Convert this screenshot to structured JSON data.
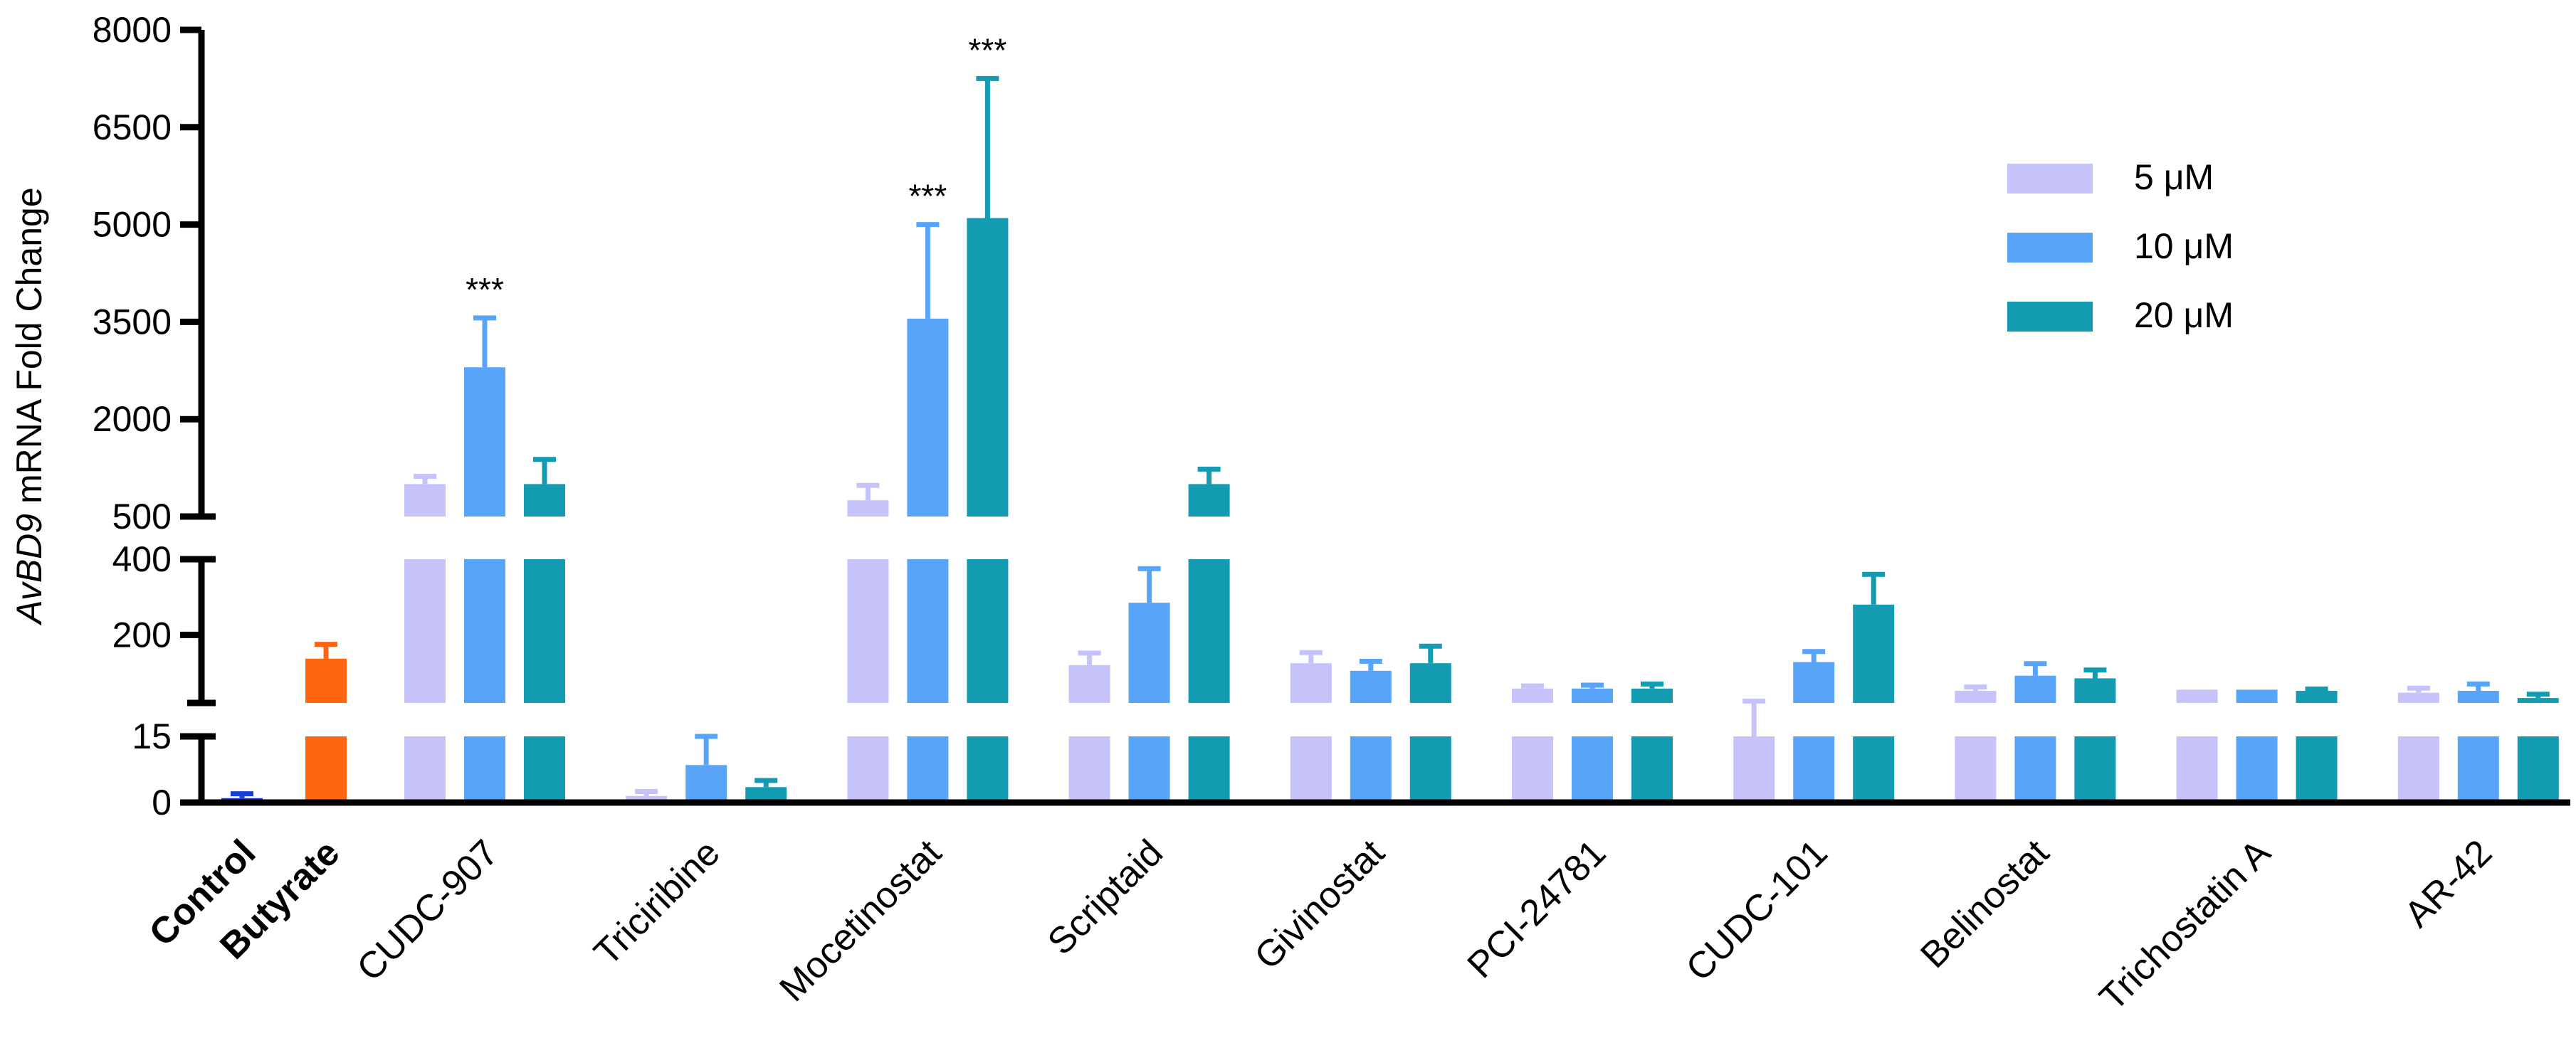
{
  "chart_data": {
    "type": "bar",
    "title": "",
    "xlabel": "",
    "ylabel": {
      "italic_part": "AvBD9",
      "plain_part": " mRNA Fold Change"
    },
    "y_axis_segments": [
      {
        "range": [
          0,
          15
        ],
        "ticks": [
          0,
          15
        ]
      },
      {
        "range": [
          20,
          400
        ],
        "ticks": [
          200,
          400
        ]
      },
      {
        "range": [
          500,
          8000
        ],
        "ticks": [
          500,
          2000,
          3500,
          5000,
          6500,
          8000
        ]
      }
    ],
    "tick_labels": [
      "0",
      "15",
      "200",
      "400",
      "500",
      "2000",
      "3500",
      "5000",
      "6500",
      "8000"
    ],
    "controls": [
      {
        "label": "Control",
        "value": 1,
        "error": 1,
        "color": "#1a3fd6",
        "bold": true
      },
      {
        "label": "Butyrate",
        "value": 137,
        "error": 38,
        "color": "#ff6410",
        "bold": true
      }
    ],
    "categories": [
      "CUDC-907",
      "Triciribine",
      "Mocetinostat",
      "Scriptaid",
      "Givinostat",
      "PCI-24781",
      "CUDC-101",
      "Belinostat",
      "Trichostatin A",
      "AR-42"
    ],
    "series": [
      {
        "name": "5 μM",
        "color": "#c5c3fa",
        "values": [
          1000,
          1.5,
          750,
          120,
          125,
          58,
          15,
          52,
          55,
          47
        ],
        "errors": [
          120,
          1,
          230,
          32,
          28,
          7,
          10,
          10,
          0,
          12
        ]
      },
      {
        "name": "10 μM",
        "color": "#58a4f8",
        "values": [
          2800,
          8.5,
          3550,
          285,
          105,
          58,
          128,
          92,
          55,
          52
        ],
        "errors": [
          760,
          6.5,
          1450,
          90,
          25,
          9,
          28,
          32,
          0,
          18
        ]
      },
      {
        "name": "20 μM",
        "color": "#139bb1",
        "values": [
          1000,
          3.5,
          5100,
          1000,
          125,
          58,
          280,
          85,
          52,
          33
        ],
        "errors": [
          380,
          1.5,
          2150,
          230,
          45,
          12,
          80,
          22,
          5,
          10
        ]
      }
    ],
    "annotations": [
      {
        "category": "CUDC-907",
        "series": "10 μM",
        "text": "***"
      },
      {
        "category": "Mocetinostat",
        "series": "10 μM",
        "text": "***"
      },
      {
        "category": "Mocetinostat",
        "series": "20 μM",
        "text": "***"
      }
    ],
    "legend_position": "top-right"
  }
}
